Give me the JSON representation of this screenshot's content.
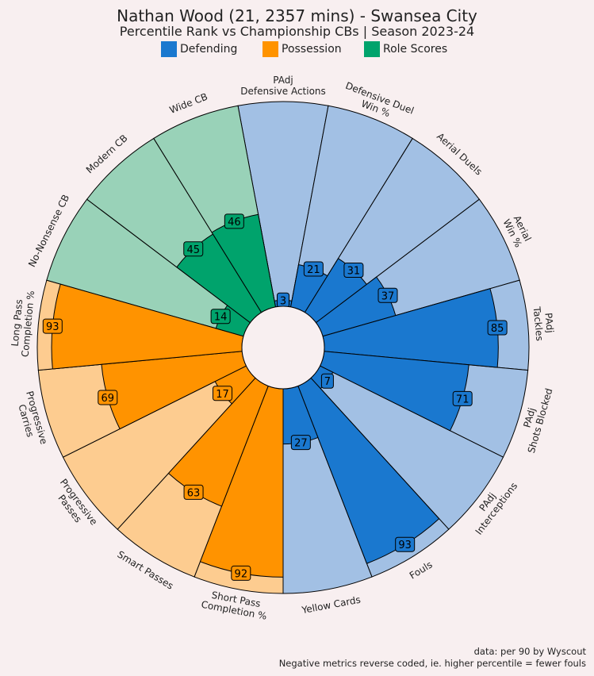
{
  "header": {
    "title": "Nathan Wood (21, 2357 mins) - Swansea City",
    "subtitle": "Percentile Rank vs Championship CBs | Season 2023-24"
  },
  "legend": [
    {
      "label": "Defending",
      "color": "#1a78cf"
    },
    {
      "label": "Possession",
      "color": "#ff9300"
    },
    {
      "label": "Role Scores",
      "color": "#00a36c"
    }
  ],
  "footer": {
    "line1": "data: per 90 by Wyscout",
    "line2": "Negative metrics reverse coded, ie. higher percentile = fewer fouls"
  },
  "chart_data": {
    "type": "radial-bar",
    "title": "Nathan Wood (21, 2357 mins) - Swansea City",
    "subtitle": "Percentile Rank vs Championship CBs | Season 2023-24",
    "range": [
      0,
      100
    ],
    "categories": [
      {
        "label": [
          "PAdj",
          "Defensive Actions"
        ],
        "value": 3,
        "group": "Defending"
      },
      {
        "label": [
          "Defensive Duel",
          "Win %"
        ],
        "value": 21,
        "group": "Defending"
      },
      {
        "label": [
          "Aerial Duels"
        ],
        "value": 31,
        "group": "Defending"
      },
      {
        "label": [
          "Aerial",
          "Win %"
        ],
        "value": 37,
        "group": "Defending"
      },
      {
        "label": [
          "PAdj",
          "Tackles"
        ],
        "value": 85,
        "group": "Defending"
      },
      {
        "label": [
          "PAdj",
          "Shots Blocked"
        ],
        "value": 71,
        "group": "Defending"
      },
      {
        "label": [
          "PAdj",
          "Interceptions"
        ],
        "value": 7,
        "group": "Defending"
      },
      {
        "label": [
          "Fouls"
        ],
        "value": 93,
        "group": "Defending"
      },
      {
        "label": [
          "Yellow Cards"
        ],
        "value": 27,
        "group": "Defending"
      },
      {
        "label": [
          "Short Pass",
          "Completion %"
        ],
        "value": 92,
        "group": "Possession"
      },
      {
        "label": [
          "Smart Passes"
        ],
        "value": 63,
        "group": "Possession"
      },
      {
        "label": [
          "Progressive",
          "Passes"
        ],
        "value": 17,
        "group": "Possession"
      },
      {
        "label": [
          "Progressive",
          "Carries"
        ],
        "value": 69,
        "group": "Possession"
      },
      {
        "label": [
          "Long Pass",
          "Completion %"
        ],
        "value": 93,
        "group": "Possession"
      },
      {
        "label": [
          "No-Nonsense CB"
        ],
        "value": 14,
        "group": "Role Scores"
      },
      {
        "label": [
          "Modern CB"
        ],
        "value": 45,
        "group": "Role Scores"
      },
      {
        "label": [
          "Wide CB"
        ],
        "value": 46,
        "group": "Role Scores"
      }
    ],
    "groups": [
      {
        "name": "Defending",
        "color": "#1a78cf",
        "background": "#a2c0e4"
      },
      {
        "name": "Possession",
        "color": "#ff9300",
        "background": "#fdcc90"
      },
      {
        "name": "Role Scores",
        "color": "#00a36c",
        "background": "#99d2b8"
      }
    ]
  }
}
